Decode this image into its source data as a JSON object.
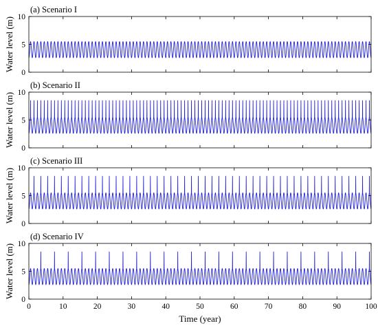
{
  "chart_data": [
    {
      "type": "line",
      "title": "(a) Scenario I",
      "ylabel": "Water level (m)",
      "xlabel": "",
      "xlim": [
        0,
        100
      ],
      "ylim": [
        0,
        10
      ],
      "yticks": [
        0,
        5,
        10
      ],
      "xticks": [],
      "series": [
        {
          "color": "#1f1fd8",
          "period_years": 1,
          "low_m": 2.6,
          "high_m": 5.5,
          "peak_m": 5.5,
          "peak_every_years": 0,
          "peak_start_year": 0
        }
      ]
    },
    {
      "type": "line",
      "title": "(b) Scenario II",
      "ylabel": "Water level (m)",
      "xlabel": "",
      "xlim": [
        0,
        100
      ],
      "ylim": [
        0,
        10
      ],
      "yticks": [
        0,
        5,
        10
      ],
      "xticks": [],
      "series": [
        {
          "color": "#1f1fd8",
          "period_years": 1,
          "low_m": 2.6,
          "high_m": 5.5,
          "peak_m": 8.5,
          "peak_every_years": 1,
          "peak_start_year": 0
        }
      ]
    },
    {
      "type": "line",
      "title": "(c) Scenario III",
      "ylabel": "Water level (m)",
      "xlabel": "",
      "xlim": [
        0,
        100
      ],
      "ylim": [
        0,
        10
      ],
      "yticks": [
        0,
        5,
        10
      ],
      "xticks": [],
      "series": [
        {
          "color": "#1f1fd8",
          "period_years": 1,
          "low_m": 2.6,
          "high_m": 5.5,
          "peak_m": 8.5,
          "peak_every_years": 2,
          "peak_start_year": 1
        }
      ]
    },
    {
      "type": "line",
      "title": "(d) Scenario IV",
      "ylabel": "Water level (m)",
      "xlabel": "Time (year)",
      "xlim": [
        0,
        100
      ],
      "ylim": [
        0,
        10
      ],
      "yticks": [
        0,
        5,
        10
      ],
      "xticks": [
        0,
        10,
        20,
        30,
        40,
        50,
        60,
        70,
        80,
        90,
        100
      ],
      "series": [
        {
          "color": "#1f1fd8",
          "period_years": 1,
          "low_m": 2.6,
          "high_m": 5.5,
          "peak_m": 8.5,
          "peak_every_years": 4,
          "peak_start_year": 3
        }
      ]
    }
  ]
}
